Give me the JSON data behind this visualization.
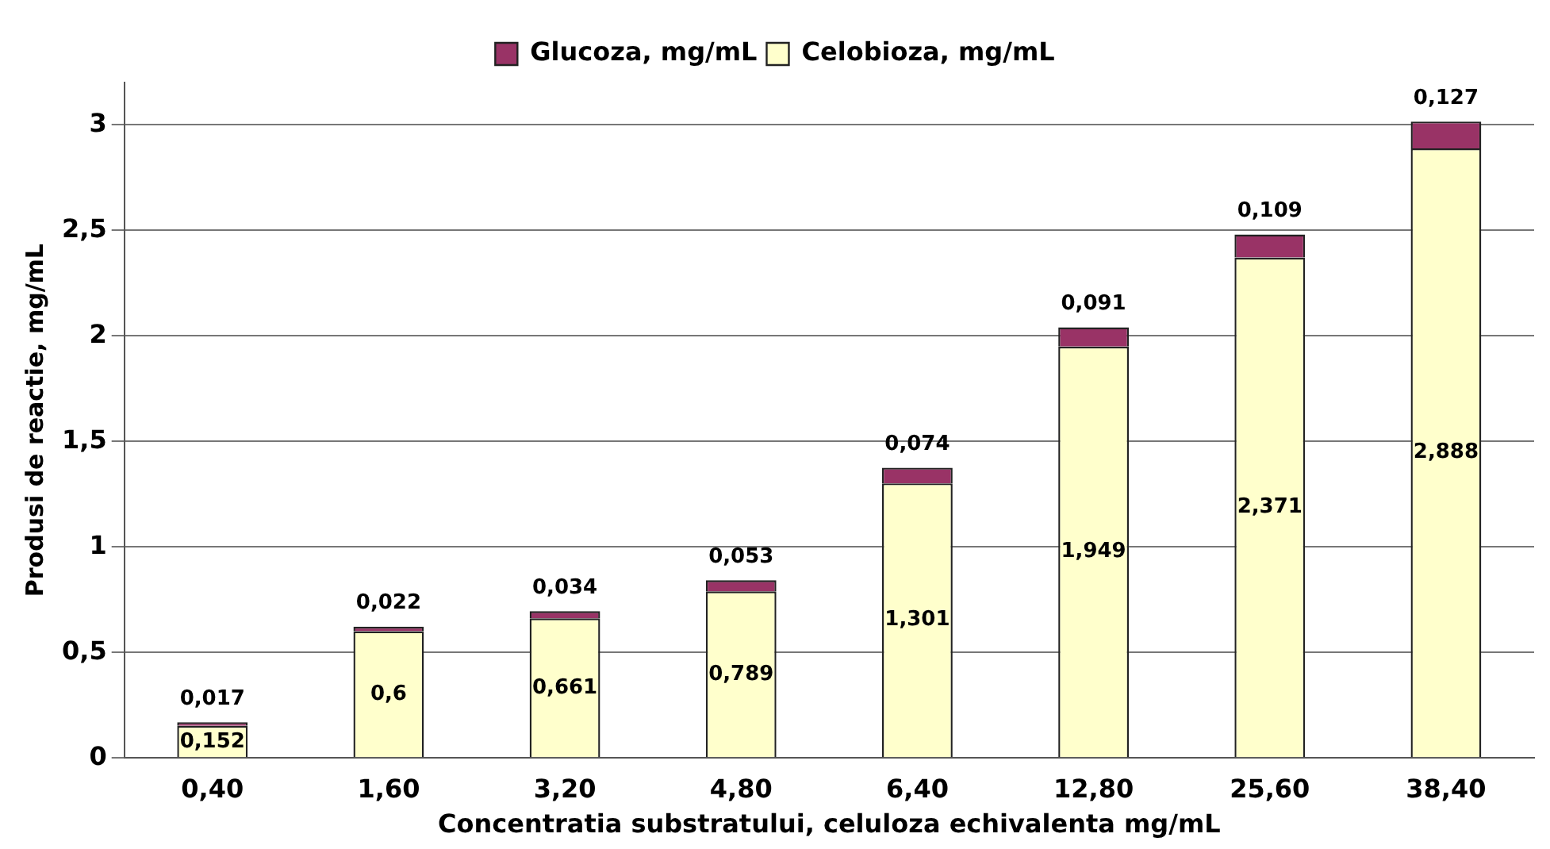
{
  "chart_data": {
    "type": "bar",
    "stacked": true,
    "xlabel": "Concentratia substratului, celuloza echivalenta mg/mL",
    "ylabel": "Produsi de reactie, mg/mL",
    "categories": [
      "0,40",
      "1,60",
      "3,20",
      "4,80",
      "6,40",
      "12,80",
      "25,60",
      "38,40"
    ],
    "series": [
      {
        "name": "Celobioza, mg/mL",
        "color": "#ffffcc",
        "values": [
          0.152,
          0.6,
          0.661,
          0.789,
          1.301,
          1.949,
          2.371,
          2.888
        ],
        "value_labels": [
          "0,152",
          "0,6",
          "0,661",
          "0,789",
          "1,301",
          "1,949",
          "2,371",
          "2,888"
        ]
      },
      {
        "name": "Glucoza, mg/mL",
        "color": "#993366",
        "values": [
          0.017,
          0.022,
          0.034,
          0.053,
          0.074,
          0.091,
          0.109,
          0.127
        ],
        "value_labels": [
          "0,017",
          "0,022",
          "0,034",
          "0,053",
          "0,074",
          "0,091",
          "0,109",
          "0,127"
        ]
      }
    ],
    "ylim": [
      0,
      3.2
    ],
    "yticks": [
      {
        "value": 0,
        "label": "0"
      },
      {
        "value": 0.5,
        "label": "0,5"
      },
      {
        "value": 1,
        "label": "1"
      },
      {
        "value": 1.5,
        "label": "1,5"
      },
      {
        "value": 2,
        "label": "2"
      },
      {
        "value": 2.5,
        "label": "2,5"
      },
      {
        "value": 3,
        "label": "3"
      }
    ],
    "grid": "y",
    "legend": "top"
  }
}
